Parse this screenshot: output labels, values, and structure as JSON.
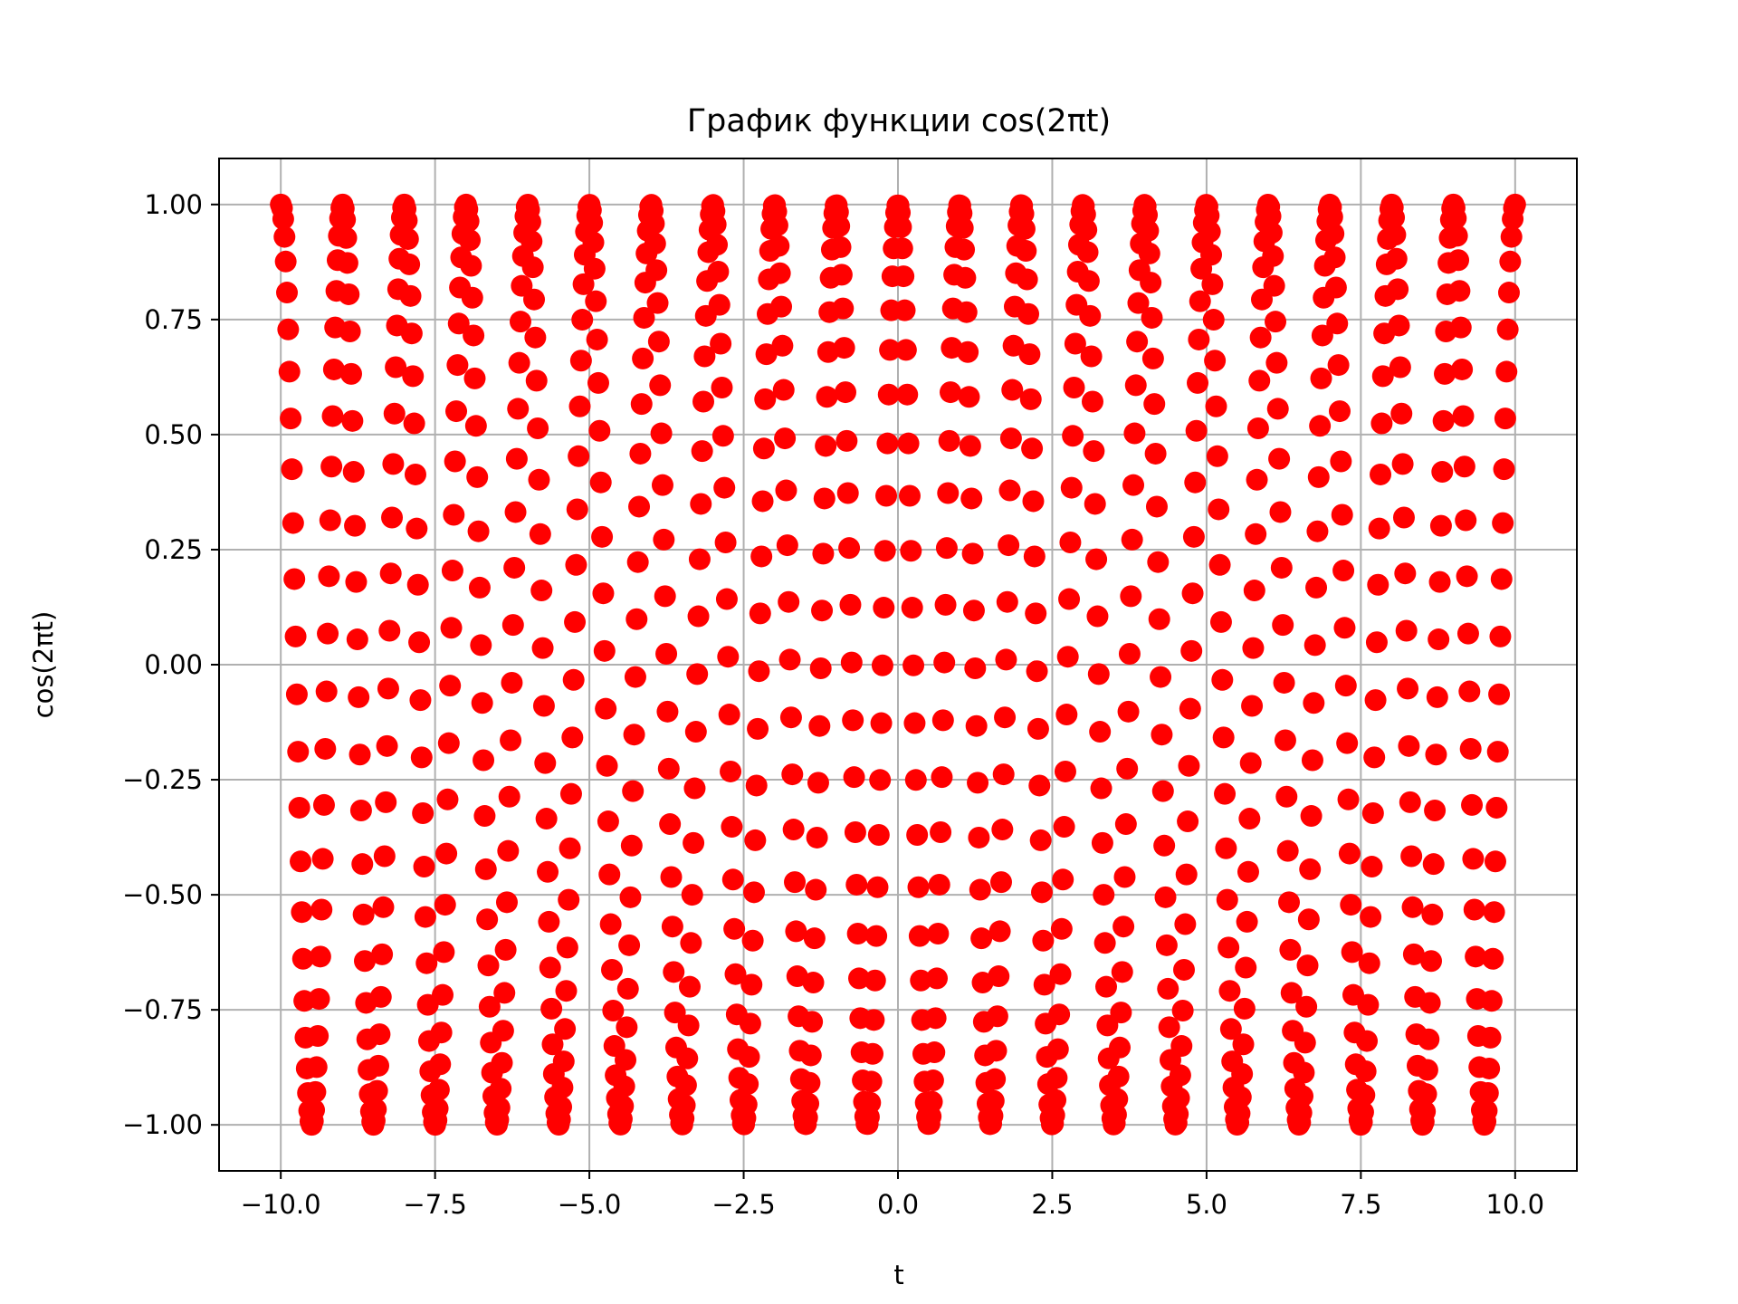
{
  "chart_data": {
    "type": "scatter",
    "title": "График функции cos(2πt)",
    "xlabel": "t",
    "ylabel": "cos(2πt)",
    "function": "cos(2πt)",
    "x_range": [
      -10,
      10
    ],
    "point_count": 1000,
    "xlim": [
      -11,
      11
    ],
    "ylim": [
      -1.1,
      1.1
    ],
    "x_ticks": [
      -10,
      -7.5,
      -5,
      -2.5,
      0,
      2.5,
      5,
      7.5,
      10
    ],
    "x_tick_labels": [
      "−10.0",
      "−7.5",
      "−5.0",
      "−2.5",
      "0.0",
      "2.5",
      "5.0",
      "7.5",
      "10.0"
    ],
    "y_ticks": [
      1,
      0.75,
      0.5,
      0.25,
      0,
      -0.25,
      -0.5,
      -0.75,
      -1
    ],
    "y_tick_labels": [
      "1.00",
      "0.75",
      "0.50",
      "0.25",
      "0.00",
      "−0.25",
      "−0.50",
      "−0.75",
      "−1.00"
    ],
    "grid": true,
    "marker": "o",
    "color": "#ff0000",
    "grid_color": "#b0b0b0"
  }
}
